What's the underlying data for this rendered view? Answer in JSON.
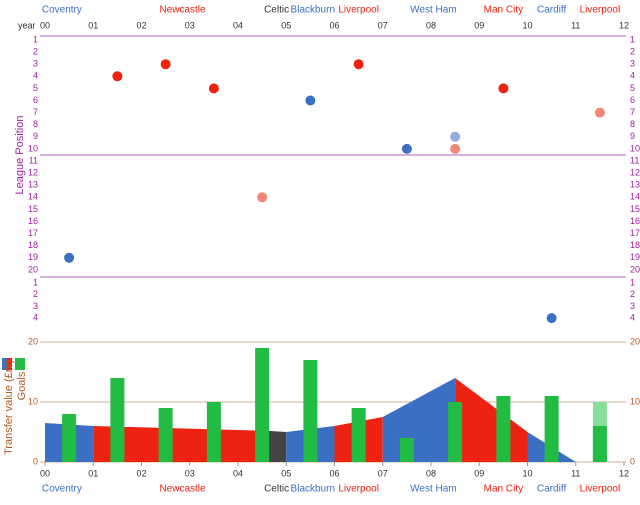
{
  "chart_data": [
    {
      "type": "scatter",
      "ylabel": "League Position",
      "xlabel": "year",
      "xlim": [
        0,
        12
      ],
      "xticks": [
        {
          "value": 0,
          "label": "00"
        },
        {
          "value": 1,
          "label": "01"
        },
        {
          "value": 2,
          "label": "02"
        },
        {
          "value": 3,
          "label": "03"
        },
        {
          "value": 4,
          "label": "04"
        },
        {
          "value": 5,
          "label": "05"
        },
        {
          "value": 6,
          "label": "06"
        },
        {
          "value": 7,
          "label": "07"
        },
        {
          "value": 8,
          "label": "08"
        },
        {
          "value": 9,
          "label": "09"
        },
        {
          "value": 10,
          "label": "10"
        },
        {
          "value": 11,
          "label": "11"
        },
        {
          "value": 12,
          "label": "12"
        }
      ],
      "premier_ticks": [
        1,
        2,
        3,
        4,
        5,
        6,
        7,
        8,
        9,
        10,
        11,
        12,
        13,
        14,
        15,
        16,
        17,
        18,
        19,
        20
      ],
      "championship_ticks": [
        1,
        2,
        3,
        4
      ],
      "clubs": [
        {
          "name": "Coventry",
          "color": "#3a6fc4",
          "from": 0,
          "to": 0.7
        },
        {
          "name": "Newcastle",
          "color": "#ee2211",
          "from": 1.5,
          "to": 4.2
        },
        {
          "name": "Celtic",
          "color": "#333333",
          "from": 4.5,
          "to": 5.1
        },
        {
          "name": "Blackburn",
          "color": "#3a6fc4",
          "from": 5.1,
          "to": 6
        },
        {
          "name": "Liverpool",
          "color": "#ee2211",
          "from": 6,
          "to": 7
        },
        {
          "name": "West Ham",
          "color": "#3a6fc4",
          "from": 7.6,
          "to": 8.5
        },
        {
          "name": "Man City",
          "color": "#ee2211",
          "from": 9,
          "to": 10
        },
        {
          "name": "Cardiff",
          "color": "#3a6fc4",
          "from": 10.2,
          "to": 10.8
        },
        {
          "name": "Liverpool",
          "color": "#ee2211",
          "from": 11.2,
          "to": 11.8
        }
      ],
      "points": [
        {
          "x": 0.5,
          "position": 19,
          "division": "premier",
          "color": "#3a6fc4"
        },
        {
          "x": 1.5,
          "position": 4,
          "division": "premier",
          "color": "#ee2211"
        },
        {
          "x": 2.5,
          "position": 3,
          "division": "premier",
          "color": "#ee2211"
        },
        {
          "x": 3.5,
          "position": 5,
          "division": "premier",
          "color": "#ee2211"
        },
        {
          "x": 4.5,
          "position": 14,
          "division": "premier",
          "color": "#f08878"
        },
        {
          "x": 5.5,
          "position": 6,
          "division": "premier",
          "color": "#3a6fc4"
        },
        {
          "x": 6.5,
          "position": 3,
          "division": "premier",
          "color": "#ee2211"
        },
        {
          "x": 7.5,
          "position": 10,
          "division": "premier",
          "color": "#3a6fc4"
        },
        {
          "x": 8.5,
          "position": 9,
          "division": "premier",
          "color": "#8eaee0"
        },
        {
          "x": 8.5,
          "position": 10,
          "division": "premier",
          "color": "#f08878"
        },
        {
          "x": 9.5,
          "position": 5,
          "division": "premier",
          "color": "#ee2211"
        },
        {
          "x": 10.5,
          "position": 4,
          "division": "championship",
          "color": "#3a6fc4"
        },
        {
          "x": 11.5,
          "position": 7,
          "division": "premier",
          "color": "#f08878"
        }
      ]
    },
    {
      "type": "bar-area",
      "ylabel": "Transfer value (£m)",
      "y2label": "Goals",
      "xlim": [
        0,
        12
      ],
      "ylim": [
        0,
        20
      ],
      "yticks": [
        0,
        10,
        20
      ],
      "grid": true,
      "xticks": [
        {
          "value": 0,
          "label": "00"
        },
        {
          "value": 1,
          "label": "01"
        },
        {
          "value": 2,
          "label": "02"
        },
        {
          "value": 3,
          "label": "03"
        },
        {
          "value": 4,
          "label": "04"
        },
        {
          "value": 5,
          "label": "05"
        },
        {
          "value": 6,
          "label": "06"
        },
        {
          "value": 7,
          "label": "07"
        },
        {
          "value": 8,
          "label": "08"
        },
        {
          "value": 9,
          "label": "09"
        },
        {
          "value": 10,
          "label": "10"
        },
        {
          "value": 11,
          "label": "11"
        },
        {
          "value": 12,
          "label": "12"
        }
      ],
      "transfer_value": [
        {
          "color": "#3a6fc4",
          "x": [
            0,
            1
          ],
          "values": [
            6.5,
            6
          ]
        },
        {
          "color": "#ee2211",
          "x": [
            1,
            4.6
          ],
          "values": [
            6,
            5.2
          ]
        },
        {
          "color": "#444444",
          "x": [
            4.6,
            5
          ],
          "values": [
            5.2,
            5
          ]
        },
        {
          "color": "#3a6fc4",
          "x": [
            5,
            6
          ],
          "values": [
            5,
            6
          ]
        },
        {
          "color": "#ee2211",
          "x": [
            6,
            7
          ],
          "values": [
            6,
            7.5
          ]
        },
        {
          "color": "#3a6fc4",
          "x": [
            7,
            8.5
          ],
          "values": [
            7.5,
            14
          ]
        },
        {
          "color": "#ee2211",
          "x": [
            8.5,
            10
          ],
          "values": [
            14,
            5
          ]
        },
        {
          "color": "#3a6fc4",
          "x": [
            10,
            11
          ],
          "values": [
            5,
            0
          ]
        }
      ],
      "goals": [
        {
          "color": "#88dd99",
          "x": [
            11.5
          ],
          "values": [
            10
          ]
        },
        {
          "color": "#22bb44",
          "x": [
            0.5,
            1.5,
            2.5,
            3.5,
            4.5,
            5.5,
            6.5,
            7.5,
            8.5,
            9.5,
            10.5,
            11.5
          ],
          "values": [
            8,
            14,
            9,
            10,
            19,
            17,
            9,
            4,
            10,
            11,
            11,
            6
          ]
        }
      ]
    }
  ]
}
